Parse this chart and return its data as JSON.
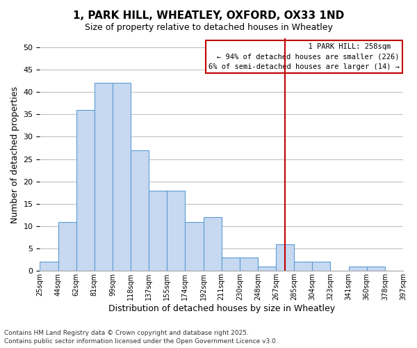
{
  "title": "1, PARK HILL, WHEATLEY, OXFORD, OX33 1ND",
  "subtitle": "Size of property relative to detached houses in Wheatley",
  "xlabel": "Distribution of detached houses by size in Wheatley",
  "ylabel": "Number of detached properties",
  "bin_labels": [
    "25sqm",
    "44sqm",
    "62sqm",
    "81sqm",
    "99sqm",
    "118sqm",
    "137sqm",
    "155sqm",
    "174sqm",
    "192sqm",
    "211sqm",
    "230sqm",
    "248sqm",
    "267sqm",
    "285sqm",
    "304sqm",
    "323sqm",
    "341sqm",
    "360sqm",
    "378sqm",
    "397sqm"
  ],
  "bar_values": [
    2,
    11,
    36,
    42,
    42,
    27,
    18,
    18,
    11,
    12,
    3,
    3,
    1,
    6,
    2,
    2,
    0,
    1,
    1,
    0
  ],
  "bar_color": "#c6d9f1",
  "bar_edge_color": "#5b9bd5",
  "vline_color": "#c00000",
  "vline_pos": 13.5,
  "ylim": [
    0,
    52
  ],
  "yticks": [
    0,
    5,
    10,
    15,
    20,
    25,
    30,
    35,
    40,
    45,
    50
  ],
  "annotation_title": "1 PARK HILL: 258sqm",
  "annotation_line1": "← 94% of detached houses are smaller (226)",
  "annotation_line2": "6% of semi-detached houses are larger (14) →",
  "footer_line1": "Contains HM Land Registry data © Crown copyright and database right 2025.",
  "footer_line2": "Contains public sector information licensed under the Open Government Licence v3.0.",
  "background_color": "#ffffff",
  "grid_color": "#c0c0c0"
}
